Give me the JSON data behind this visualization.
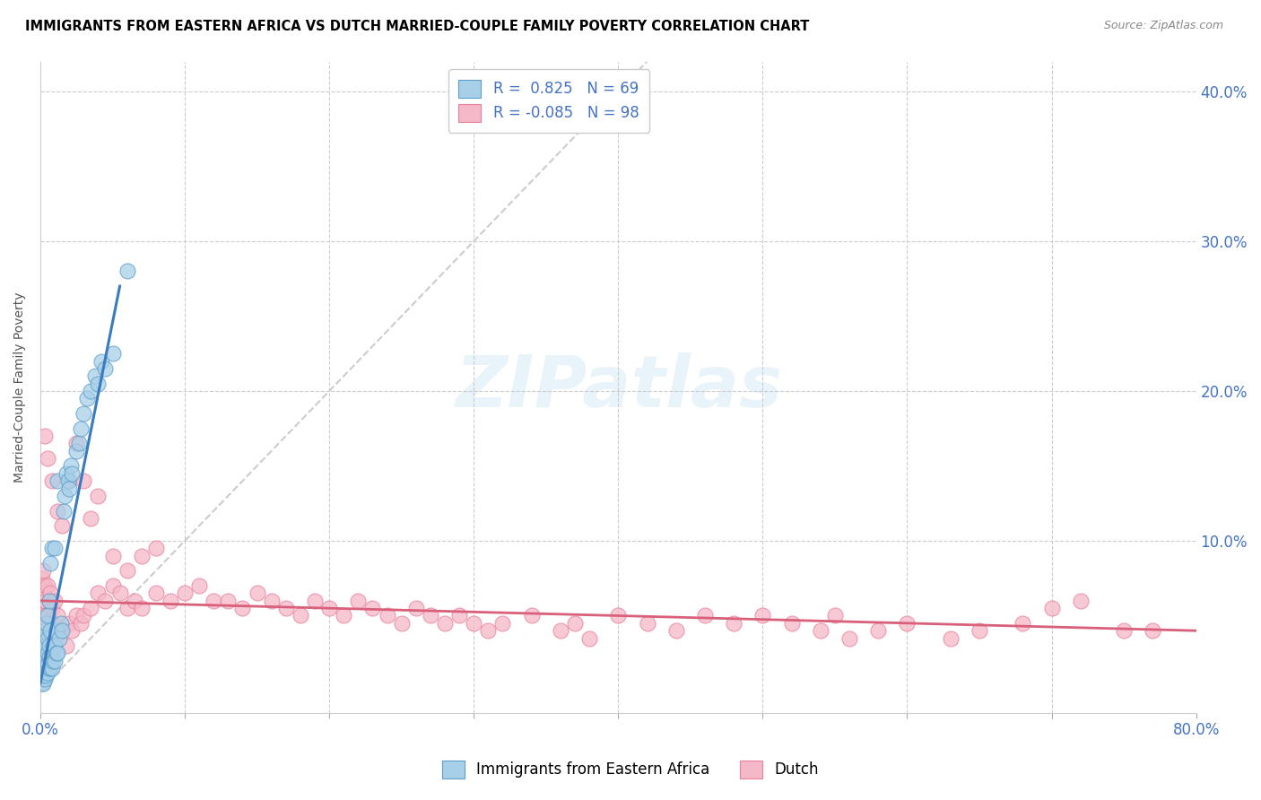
{
  "title": "IMMIGRANTS FROM EASTERN AFRICA VS DUTCH MARRIED-COUPLE FAMILY POVERTY CORRELATION CHART",
  "source": "Source: ZipAtlas.com",
  "ylabel": "Married-Couple Family Poverty",
  "xlim": [
    0,
    0.8
  ],
  "ylim": [
    -0.015,
    0.42
  ],
  "blue_R": 0.825,
  "blue_N": 69,
  "pink_R": -0.085,
  "pink_N": 98,
  "blue_color": "#a8cfe8",
  "pink_color": "#f5b8c8",
  "blue_edge_color": "#5b9ec9",
  "pink_edge_color": "#e8809a",
  "blue_line_color": "#3a7abf",
  "pink_line_color": "#d9607a",
  "legend_label_blue": "Immigrants from Eastern Africa",
  "legend_label_pink": "Dutch",
  "watermark": "ZIPatlas",
  "blue_scatter_x": [
    0.001,
    0.001,
    0.001,
    0.001,
    0.002,
    0.002,
    0.002,
    0.002,
    0.002,
    0.002,
    0.002,
    0.003,
    0.003,
    0.003,
    0.003,
    0.003,
    0.003,
    0.004,
    0.004,
    0.004,
    0.004,
    0.004,
    0.005,
    0.005,
    0.005,
    0.005,
    0.005,
    0.006,
    0.006,
    0.006,
    0.006,
    0.007,
    0.007,
    0.007,
    0.007,
    0.008,
    0.008,
    0.008,
    0.009,
    0.009,
    0.01,
    0.01,
    0.01,
    0.011,
    0.011,
    0.012,
    0.012,
    0.013,
    0.014,
    0.015,
    0.016,
    0.017,
    0.018,
    0.019,
    0.02,
    0.021,
    0.022,
    0.025,
    0.027,
    0.028,
    0.03,
    0.032,
    0.035,
    0.038,
    0.04,
    0.042,
    0.045,
    0.05,
    0.06
  ],
  "blue_scatter_y": [
    0.005,
    0.01,
    0.015,
    0.02,
    0.005,
    0.01,
    0.015,
    0.02,
    0.025,
    0.03,
    0.035,
    0.008,
    0.012,
    0.018,
    0.025,
    0.03,
    0.04,
    0.01,
    0.015,
    0.02,
    0.03,
    0.045,
    0.012,
    0.018,
    0.025,
    0.035,
    0.05,
    0.015,
    0.022,
    0.03,
    0.06,
    0.015,
    0.02,
    0.04,
    0.085,
    0.015,
    0.025,
    0.095,
    0.02,
    0.03,
    0.02,
    0.03,
    0.095,
    0.025,
    0.04,
    0.025,
    0.14,
    0.035,
    0.045,
    0.04,
    0.12,
    0.13,
    0.145,
    0.14,
    0.135,
    0.15,
    0.145,
    0.16,
    0.165,
    0.175,
    0.185,
    0.195,
    0.2,
    0.21,
    0.205,
    0.22,
    0.215,
    0.225,
    0.28
  ],
  "pink_scatter_x": [
    0.001,
    0.001,
    0.002,
    0.002,
    0.002,
    0.003,
    0.003,
    0.004,
    0.004,
    0.005,
    0.005,
    0.006,
    0.006,
    0.007,
    0.007,
    0.008,
    0.008,
    0.009,
    0.01,
    0.01,
    0.012,
    0.015,
    0.018,
    0.02,
    0.022,
    0.025,
    0.028,
    0.03,
    0.035,
    0.04,
    0.045,
    0.05,
    0.055,
    0.06,
    0.065,
    0.07,
    0.08,
    0.09,
    0.1,
    0.11,
    0.12,
    0.13,
    0.14,
    0.15,
    0.16,
    0.17,
    0.18,
    0.19,
    0.2,
    0.21,
    0.22,
    0.23,
    0.24,
    0.25,
    0.26,
    0.27,
    0.28,
    0.29,
    0.3,
    0.31,
    0.32,
    0.34,
    0.36,
    0.37,
    0.38,
    0.4,
    0.42,
    0.44,
    0.46,
    0.48,
    0.5,
    0.52,
    0.54,
    0.55,
    0.56,
    0.58,
    0.6,
    0.63,
    0.65,
    0.68,
    0.7,
    0.72,
    0.75,
    0.77,
    0.003,
    0.005,
    0.008,
    0.012,
    0.015,
    0.02,
    0.025,
    0.03,
    0.035,
    0.04,
    0.05,
    0.06,
    0.07,
    0.08
  ],
  "pink_scatter_y": [
    0.05,
    0.075,
    0.04,
    0.065,
    0.08,
    0.045,
    0.07,
    0.05,
    0.06,
    0.045,
    0.07,
    0.04,
    0.06,
    0.045,
    0.065,
    0.04,
    0.055,
    0.045,
    0.04,
    0.06,
    0.05,
    0.04,
    0.03,
    0.045,
    0.04,
    0.05,
    0.045,
    0.05,
    0.055,
    0.065,
    0.06,
    0.07,
    0.065,
    0.055,
    0.06,
    0.055,
    0.065,
    0.06,
    0.065,
    0.07,
    0.06,
    0.06,
    0.055,
    0.065,
    0.06,
    0.055,
    0.05,
    0.06,
    0.055,
    0.05,
    0.06,
    0.055,
    0.05,
    0.045,
    0.055,
    0.05,
    0.045,
    0.05,
    0.045,
    0.04,
    0.045,
    0.05,
    0.04,
    0.045,
    0.035,
    0.05,
    0.045,
    0.04,
    0.05,
    0.045,
    0.05,
    0.045,
    0.04,
    0.05,
    0.035,
    0.04,
    0.045,
    0.035,
    0.04,
    0.045,
    0.055,
    0.06,
    0.04,
    0.04,
    0.17,
    0.155,
    0.14,
    0.12,
    0.11,
    0.14,
    0.165,
    0.14,
    0.115,
    0.13,
    0.09,
    0.08,
    0.09,
    0.095
  ],
  "blue_trend_x": [
    0.0,
    0.055
  ],
  "blue_trend_y": [
    0.005,
    0.27
  ],
  "pink_trend_x": [
    0.0,
    0.8
  ],
  "pink_trend_y": [
    0.06,
    0.04
  ]
}
